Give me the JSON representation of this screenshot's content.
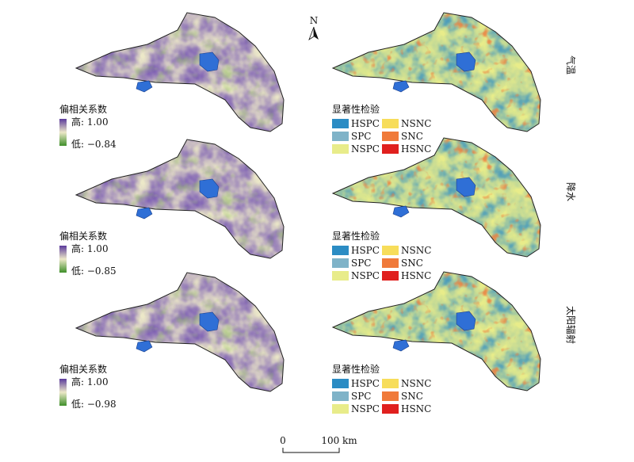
{
  "rows": [
    {
      "variable": "气温",
      "partial_legend": {
        "title": "偏相关系数",
        "high": "高: 1.00",
        "low": "低: −0.84"
      },
      "sig_legend": {
        "title": "显著性检验"
      }
    },
    {
      "variable": "降水",
      "partial_legend": {
        "title": "偏相关系数",
        "high": "高: 1.00",
        "low": "低: −0.85"
      },
      "sig_legend": {
        "title": "显著性检验"
      }
    },
    {
      "variable": "太阳辐射",
      "partial_legend": {
        "title": "偏相关系数",
        "high": "高: 1.00",
        "low": "低: −0.98"
      },
      "sig_legend": {
        "title": "显著性检验"
      }
    }
  ],
  "sig_classes": [
    {
      "label": "HSPC",
      "color": "#2b8cc4"
    },
    {
      "label": "SPC",
      "color": "#7fb3c8"
    },
    {
      "label": "NSPC",
      "color": "#e8ec8a"
    },
    {
      "label": "NSNC",
      "color": "#f7dd5a"
    },
    {
      "label": "SNC",
      "color": "#f07a3a"
    },
    {
      "label": "HSNC",
      "color": "#e0201e"
    }
  ],
  "partial_colors": {
    "high": "#5b3a9c",
    "low": "#3f8f2a",
    "mid": "#ece8c8"
  },
  "lake_color": "#2f6fd6",
  "north_label": "N",
  "scale": {
    "start": "0",
    "end": "100 km"
  }
}
